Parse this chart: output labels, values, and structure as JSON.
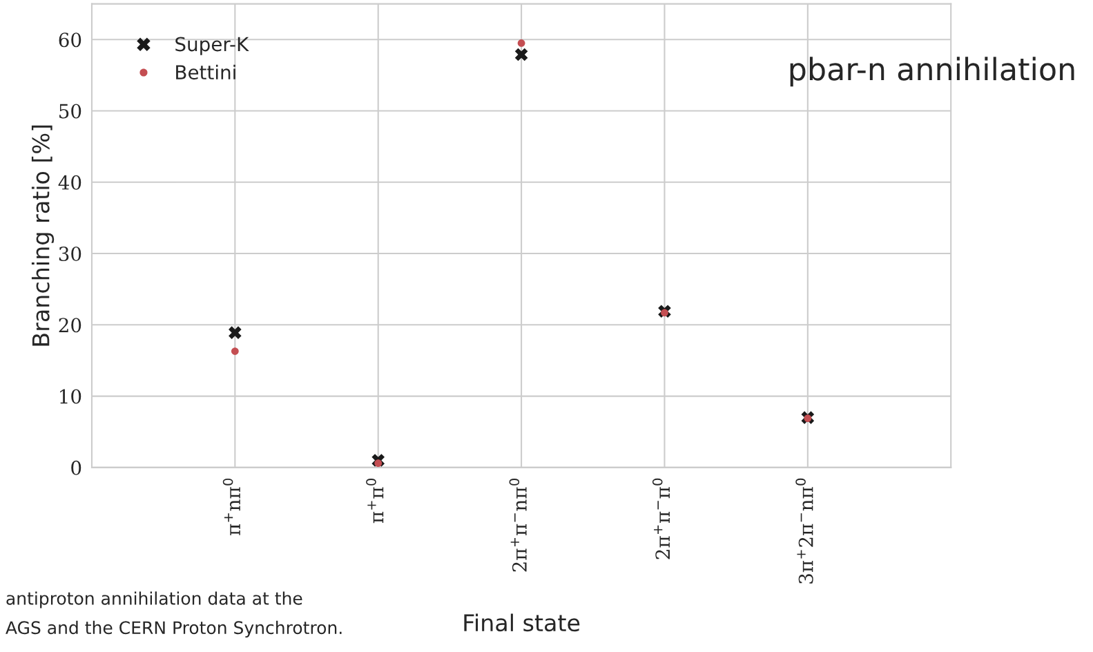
{
  "chart_data": {
    "type": "scatter",
    "title": "pbar-n annihilation",
    "xlabel": "Final state",
    "ylabel": "Branching ratio [%]",
    "categories": [
      "π$^{+}$nπ$^{0}$",
      "π$^{+}$π$^{0}$",
      "2π$^{+}$π$^{−}$nπ$^{0}$",
      "2π$^{+}$π$^{−}$π$^{0}$",
      "3π$^{+}$2π$^{−}$nπ$^{0}$"
    ],
    "series": [
      {
        "name": "Super-K",
        "color": "#1a1a1a",
        "marker": "cross",
        "values": [
          18.9,
          1.0,
          57.9,
          21.9,
          7.0
        ]
      },
      {
        "name": "Bettini",
        "color": "#c44e52",
        "marker": "circle",
        "values": [
          16.3,
          0.6,
          59.5,
          21.7,
          6.9
        ]
      }
    ],
    "ylim": [
      0,
      65
    ],
    "yticks": [
      0,
      10,
      20,
      30,
      40,
      50,
      60
    ],
    "grid": true,
    "legend": "top left",
    "annotations": [
      "antiproton annihilation data at the",
      "AGS and the CERN Proton Synchrotron."
    ]
  }
}
